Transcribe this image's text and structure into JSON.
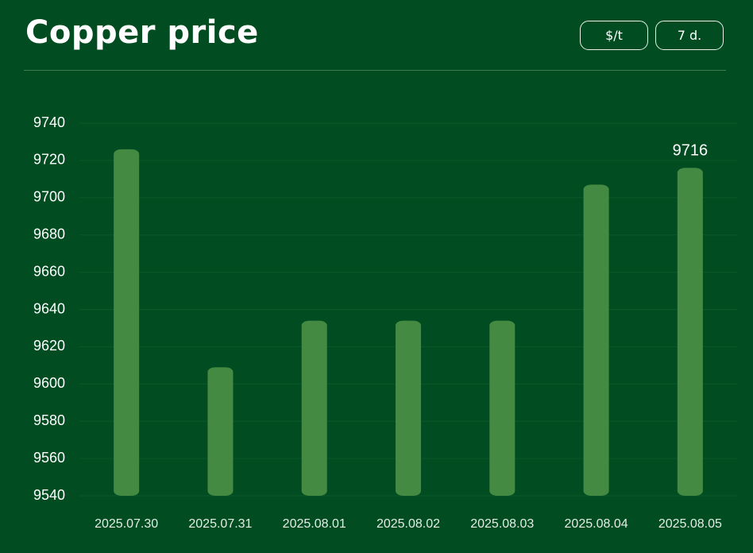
{
  "header": {
    "title": "Copper price",
    "buttons": [
      "$/t",
      "7 d."
    ]
  },
  "chart_data": {
    "type": "bar",
    "categories": [
      "2025.07.30",
      "2025.07.31",
      "2025.08.01",
      "2025.08.02",
      "2025.08.03",
      "2025.08.04",
      "2025.08.05"
    ],
    "values": [
      9726,
      9609,
      9634,
      9634,
      9634,
      9707,
      9716
    ],
    "value_labels": [
      null,
      null,
      null,
      null,
      null,
      null,
      "9716"
    ],
    "color": "#448a42",
    "ylim": [
      9540,
      9740
    ],
    "yticks": [
      9540,
      9560,
      9580,
      9600,
      9620,
      9640,
      9660,
      9680,
      9700,
      9720,
      9740
    ],
    "grid": true
  }
}
